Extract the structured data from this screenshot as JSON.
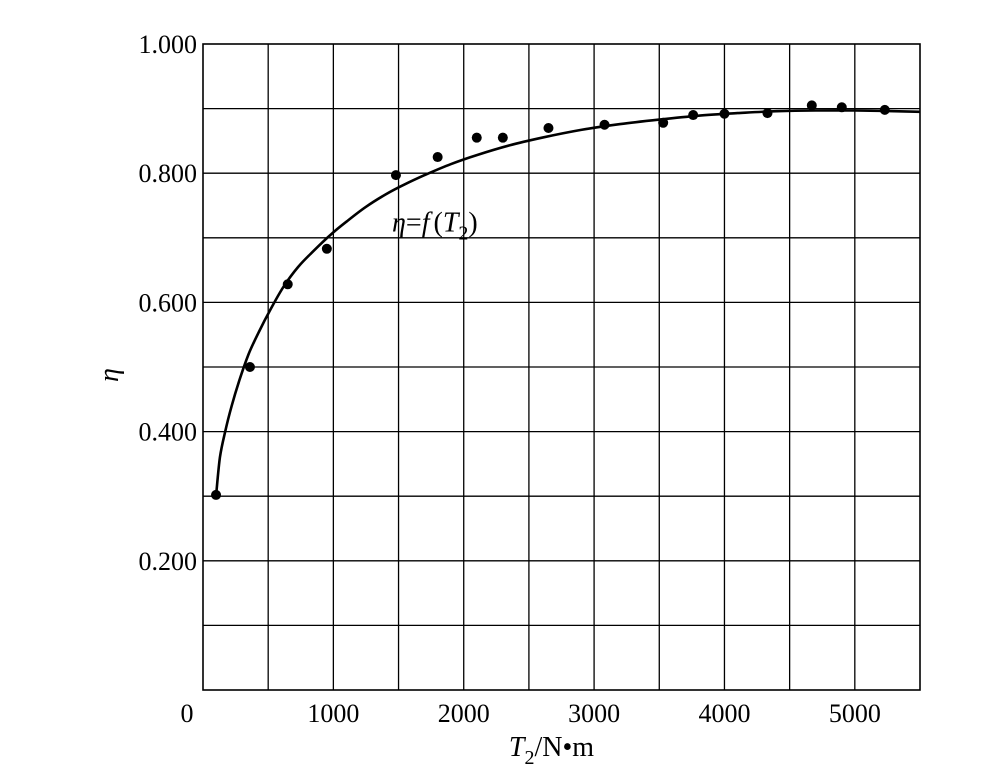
{
  "chart_data": {
    "type": "scatter",
    "xlabel": {
      "var": "T",
      "sub": "2",
      "unit": "/N•m"
    },
    "ylabel": "η",
    "xlim": [
      0,
      5500
    ],
    "ylim": [
      0,
      1.0
    ],
    "x_ticks": [
      0,
      1000,
      2000,
      3000,
      4000,
      5000
    ],
    "x_tick_labels": [
      "0",
      "1000",
      "2000",
      "3000",
      "4000",
      "5000"
    ],
    "y_ticks": [
      0.2,
      0.4,
      0.6,
      0.8,
      1.0
    ],
    "y_tick_labels": [
      "0.200",
      "0.400",
      "0.600",
      "0.800",
      "1.000"
    ],
    "grid": true,
    "x_grid_step": 500,
    "y_grid_step": 0.1,
    "points": [
      {
        "x": 100,
        "y": 0.302
      },
      {
        "x": 360,
        "y": 0.5
      },
      {
        "x": 650,
        "y": 0.628
      },
      {
        "x": 950,
        "y": 0.683
      },
      {
        "x": 1480,
        "y": 0.797
      },
      {
        "x": 1800,
        "y": 0.825
      },
      {
        "x": 2100,
        "y": 0.855
      },
      {
        "x": 2300,
        "y": 0.855
      },
      {
        "x": 2650,
        "y": 0.87
      },
      {
        "x": 3080,
        "y": 0.875
      },
      {
        "x": 3530,
        "y": 0.878
      },
      {
        "x": 3760,
        "y": 0.89
      },
      {
        "x": 4000,
        "y": 0.892
      },
      {
        "x": 4330,
        "y": 0.893
      },
      {
        "x": 4670,
        "y": 0.905
      },
      {
        "x": 4900,
        "y": 0.902
      },
      {
        "x": 5230,
        "y": 0.898
      }
    ],
    "fit_curve": {
      "x": [
        100,
        130,
        170,
        220,
        280,
        350,
        430,
        520,
        620,
        730,
        850,
        980,
        1100,
        1250,
        1400,
        1550,
        1700,
        1900,
        2100,
        2350,
        2600,
        2900,
        3200,
        3500,
        3800,
        4100,
        4400,
        4700,
        5000,
        5300,
        5500
      ],
      "y": [
        0.3,
        0.36,
        0.4,
        0.44,
        0.48,
        0.52,
        0.555,
        0.59,
        0.625,
        0.655,
        0.68,
        0.705,
        0.725,
        0.748,
        0.767,
        0.783,
        0.797,
        0.814,
        0.828,
        0.843,
        0.855,
        0.867,
        0.876,
        0.883,
        0.889,
        0.893,
        0.896,
        0.897,
        0.897,
        0.896,
        0.895
      ]
    },
    "annotation": {
      "eta": "η",
      "eq": "=",
      "f": "f",
      "open": "(",
      "var": "T",
      "sub": "2",
      "close": ")",
      "x": 1450,
      "y": 0.725
    }
  }
}
